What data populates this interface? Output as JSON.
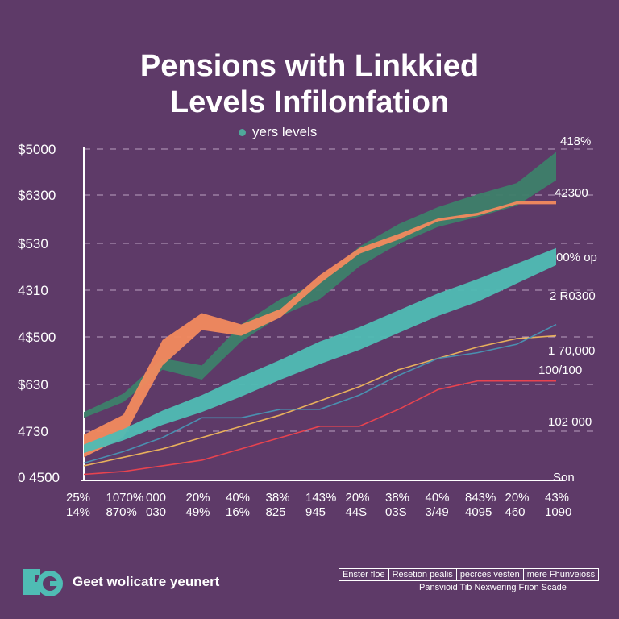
{
  "title_line1": "Pensions with Linkkied",
  "title_line2": "Levels Infilonfation",
  "legend_label": "yers levels",
  "colors": {
    "background": "#5e3a68",
    "dark_green": "#3d7f6a",
    "teal": "#4fbcb4",
    "orange": "#f28a5e",
    "yellow": "#e8b05c",
    "red": "#e8434f",
    "blue": "#4a8fb0",
    "green": "#57a57c"
  },
  "chart_data": {
    "type": "area",
    "y_tick_labels": [
      "$5000",
      "$6300",
      "$530",
      "4310",
      "4$500",
      "$630",
      "4730",
      "0 4500"
    ],
    "x_tick_labels_top": [
      "25%",
      "1070%",
      "000",
      "20%",
      "40%",
      "38%",
      "143%",
      "20%",
      "38%",
      "40%",
      "843%",
      "20%",
      "43%"
    ],
    "x_tick_labels_bottom": [
      "14%",
      "870%",
      "030",
      "49%",
      "16%",
      "825",
      "945",
      "44S",
      "03S",
      "3/49",
      "4095",
      "460",
      "1090"
    ],
    "right_labels": [
      "418%",
      "42300",
      "00% op",
      "2 R0300",
      "1 70,000",
      "100/100",
      "102 000",
      "Son"
    ],
    "x": [
      0,
      1,
      2,
      3,
      4,
      5,
      6,
      7,
      8,
      9,
      10,
      11,
      12
    ],
    "series": [
      {
        "color": "dark_green",
        "kind": "band",
        "values": [
          1.6,
          2.2,
          3.4,
          3.1,
          4.5,
          5.4,
          6.0,
          7.2,
          8.0,
          8.6,
          9.0,
          9.4,
          10.4
        ],
        "width": [
          0.2,
          0.3,
          0.4,
          0.5,
          0.6,
          0.6,
          0.6,
          0.7,
          0.7,
          0.7,
          0.8,
          0.8,
          1.0
        ]
      },
      {
        "color": "orange",
        "kind": "band",
        "values": [
          0.5,
          1.2,
          3.8,
          4.9,
          4.6,
          5.2,
          6.4,
          7.4,
          7.9,
          8.5,
          8.7,
          9.1,
          9.1
        ],
        "width": [
          0.8,
          0.8,
          0.9,
          0.6,
          0.4,
          0.3,
          0.3,
          0.2,
          0.2,
          0.1,
          0.1,
          0.1,
          0.1
        ]
      },
      {
        "color": "teal",
        "kind": "band",
        "values": [
          0.4,
          0.9,
          1.5,
          2.0,
          2.6,
          3.2,
          3.8,
          4.3,
          4.9,
          5.5,
          6.0,
          6.6,
          7.2
        ],
        "width": [
          0.3,
          0.4,
          0.5,
          0.6,
          0.7,
          0.7,
          0.8,
          0.8,
          0.8,
          0.8,
          0.8,
          0.7,
          0.6
        ]
      },
      {
        "color": "yellow",
        "kind": "line",
        "values": [
          -0.2,
          0.1,
          0.4,
          0.8,
          1.2,
          1.6,
          2.1,
          2.6,
          3.2,
          3.6,
          4.0,
          4.3,
          4.4
        ]
      },
      {
        "color": "blue",
        "kind": "line",
        "values": [
          -0.1,
          0.3,
          0.8,
          1.5,
          1.5,
          1.8,
          1.8,
          2.3,
          3.0,
          3.6,
          3.8,
          4.1,
          4.8
        ]
      },
      {
        "color": "red",
        "kind": "line",
        "values": [
          -0.5,
          -0.4,
          -0.2,
          0.0,
          0.4,
          0.8,
          1.2,
          1.2,
          1.8,
          2.5,
          2.8,
          2.8,
          2.8
        ]
      }
    ],
    "ylim": [
      -0.6,
      11
    ],
    "grid": true
  },
  "footer": {
    "logo_text": "Geet wolicatre yeunert",
    "box_items": [
      "Enster floe",
      "Resetion pealis",
      "pecrces vesten",
      "mere Fhunveioss"
    ],
    "sub_text": "Pansvioid  Tib Nexwering Frion Scade"
  }
}
